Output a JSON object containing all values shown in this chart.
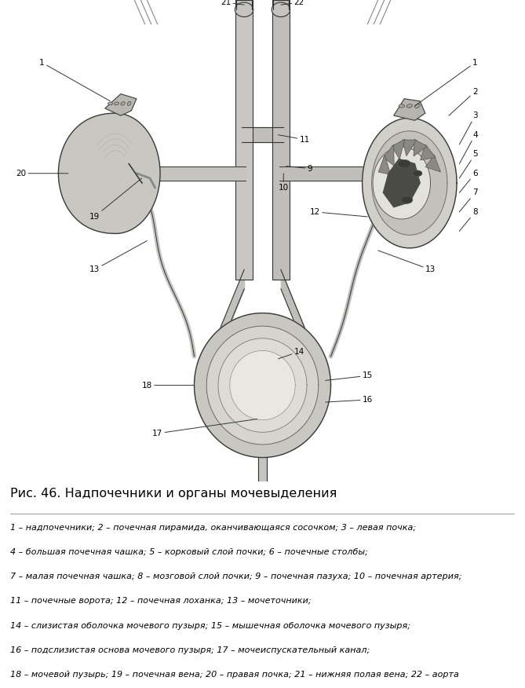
{
  "title": "Рис. 46. Надпочечники и органы мочевыделения",
  "caption_lines": [
    "1 – надпочечники; 2 – почечная пирамида, оканчивающаяся сосочком; 3 – левая почка;",
    "4 – большая почечная чашка; 5 – корковый слой почки; 6 – почечные столбы;",
    "7 – малая почечная чашка; 8 – мозговой слой почки; 9 – почечная пазуха; 10 – почечная артерия;",
    "11 – почечные ворота; 12 – почечная лоханка; 13 – мочеточники;",
    "14 – слизистая оболочка мочевого пузыря; 15 – мышечная оболочка мочевого пузыря;",
    "16 – подслизистая основа мочевого пузыря; 17 – мочеиспускательный канал;",
    "18 – мочевой пузырь; 19 – почечная вена; 20 – правая почка; 21 – нижняя полая вена; 22 – аорта"
  ],
  "bg_color": "#ffffff",
  "fig_width": 6.69,
  "fig_height": 8.76,
  "dpi": 100,
  "kidney_gray": "#c0bfbc",
  "vessel_gray": "#b5b3ae",
  "dark_gray": "#555555",
  "line_color": "#333333"
}
